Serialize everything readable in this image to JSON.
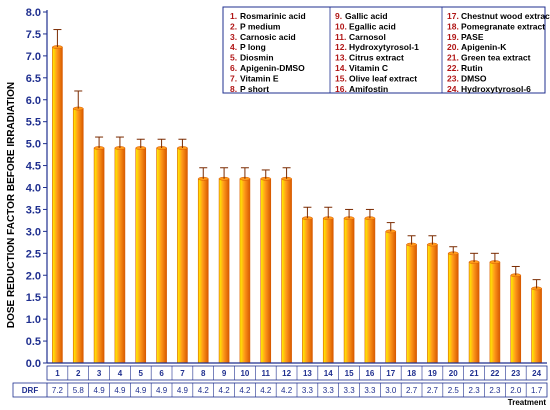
{
  "chart_data": {
    "type": "bar",
    "ylabel": "DOSE REDUCTION FACTOR BEFORE IRRADIATION",
    "xlabel": "Treatment",
    "ylim": [
      0,
      8
    ],
    "yticks": [
      "0.0",
      "0.5",
      "1.0",
      "1.5",
      "2.0",
      "2.5",
      "3.0",
      "3.5",
      "4.0",
      "4.5",
      "5.0",
      "5.5",
      "6.0",
      "6.5",
      "7.0",
      "7.5",
      "8.0"
    ],
    "categories": [
      "1",
      "2",
      "3",
      "4",
      "5",
      "6",
      "7",
      "8",
      "9",
      "10",
      "11",
      "12",
      "13",
      "14",
      "15",
      "16",
      "17",
      "18",
      "19",
      "20",
      "21",
      "22",
      "23",
      "24"
    ],
    "values": [
      7.2,
      5.8,
      4.9,
      4.9,
      4.9,
      4.9,
      4.9,
      4.2,
      4.2,
      4.2,
      4.2,
      4.2,
      3.3,
      3.3,
      3.3,
      3.3,
      3.0,
      2.7,
      2.7,
      2.5,
      2.3,
      2.3,
      2.0,
      1.7
    ],
    "errors": [
      0.4,
      0.4,
      0.25,
      0.25,
      0.2,
      0.2,
      0.2,
      0.25,
      0.25,
      0.25,
      0.2,
      0.25,
      0.25,
      0.25,
      0.2,
      0.2,
      0.2,
      0.2,
      0.2,
      0.15,
      0.2,
      0.2,
      0.2,
      0.2
    ],
    "drf_row_label": "DRF",
    "drf_labels": [
      "7.2",
      "5.8",
      "4.9",
      "4.9",
      "4.9",
      "4.9",
      "4.9",
      "4.2",
      "4.2",
      "4.2",
      "4.2",
      "4.2",
      "3.3",
      "3.3",
      "3.3",
      "3.3",
      "3.0",
      "2.7",
      "2.7",
      "2.5",
      "2.3",
      "2.3",
      "2.0",
      "1.7"
    ],
    "legend": [
      {
        "num": "1.",
        "name": "Rosmarinic acid"
      },
      {
        "num": "2.",
        "name": "P medium"
      },
      {
        "num": "3.",
        "name": "Carnosic acid"
      },
      {
        "num": "4.",
        "name": "P long"
      },
      {
        "num": "5.",
        "name": "Diosmin"
      },
      {
        "num": "6.",
        "name": "Apigenin-DMSO"
      },
      {
        "num": "7.",
        "name": "Vitamin  E"
      },
      {
        "num": "8.",
        "name": "P short"
      },
      {
        "num": "9.",
        "name": "Gallic acid"
      },
      {
        "num": "10.",
        "name": "Egallic acid"
      },
      {
        "num": "11.",
        "name": "Carnosol"
      },
      {
        "num": "12.",
        "name": "Hydroxytyrosol-1"
      },
      {
        "num": "13.",
        "name": "Citrus extract"
      },
      {
        "num": "14.",
        "name": "Vitamin C"
      },
      {
        "num": "15.",
        "name": "Olive leaf extract"
      },
      {
        "num": "16.",
        "name": "Amifostin"
      },
      {
        "num": "17.",
        "name": "Chestnut wood extract"
      },
      {
        "num": "18.",
        "name": "Pomegranate extract"
      },
      {
        "num": "19.",
        "name": "PASE"
      },
      {
        "num": "20.",
        "name": "Apigenin-K"
      },
      {
        "num": "21.",
        "name": "Green tea extract"
      },
      {
        "num": "22.",
        "name": "Rutin"
      },
      {
        "num": "23.",
        "name": "DMSO"
      },
      {
        "num": "24.",
        "name": "Hydroxytyrosol-6"
      }
    ],
    "grid": false,
    "legend_placement": "top-right",
    "colors": {
      "bar_light": "#fff200",
      "bar_mid": "#ff9a1a",
      "bar_dark": "#d85a00",
      "axis": "#1f2f8f",
      "legend_border": "#1f2f8f",
      "error_bar": "#7a2a00"
    }
  }
}
